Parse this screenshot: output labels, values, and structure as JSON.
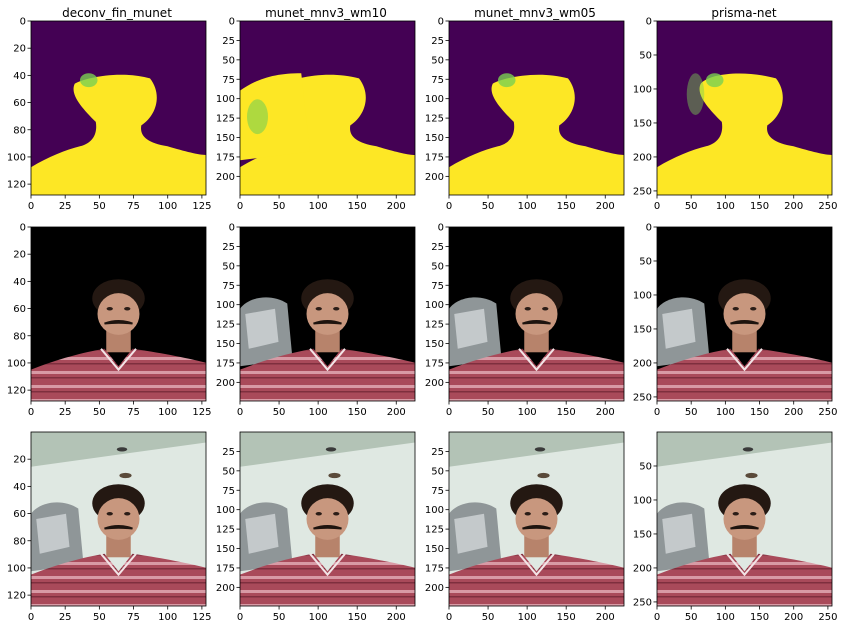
{
  "figure": {
    "colors": {
      "mask_background": "#440154",
      "mask_foreground": "#fde725",
      "mask_edge": "#7ad151",
      "photo_background": "#000000",
      "wall": "#dfe8e2",
      "ceiling": "#b3c3b6",
      "skin": "#c8977e",
      "hair": "#241812",
      "shirt": "#a94a5a",
      "shirt_stripe": "#d89aa5",
      "clothes_pile": "#8f9698"
    },
    "columns": [
      {
        "title": "deconv_fin_munet"
      },
      {
        "title": "munet_mnv3_wm10"
      },
      {
        "title": "munet_mnv3_wm05"
      },
      {
        "title": "prisma-net"
      }
    ],
    "rows": [
      {
        "content": "mask"
      },
      {
        "content": "masked_photo"
      },
      {
        "content": "photo"
      }
    ]
  },
  "chart_data": [
    {
      "type": "image",
      "title": "deconv_fin_munet",
      "xlim": [
        0,
        128
      ],
      "ylim": [
        128,
        0
      ],
      "xticks": [
        0,
        25,
        50,
        75,
        100,
        125
      ],
      "yticks_by_row": [
        [
          0,
          20,
          40,
          60,
          80,
          100,
          120
        ],
        [
          0,
          20,
          40,
          60,
          80,
          100,
          120
        ],
        [
          20,
          40,
          60,
          80,
          100,
          120
        ]
      ]
    },
    {
      "type": "image",
      "title": "munet_mnv3_wm10",
      "xlim": [
        0,
        224
      ],
      "ylim": [
        224,
        0
      ],
      "xticks": [
        0,
        50,
        100,
        150,
        200
      ],
      "yticks_by_row": [
        [
          0,
          25,
          50,
          75,
          100,
          125,
          150,
          175,
          200
        ],
        [
          0,
          25,
          50,
          75,
          100,
          125,
          150,
          175,
          200
        ],
        [
          25,
          50,
          75,
          100,
          125,
          150,
          175,
          200
        ]
      ]
    },
    {
      "type": "image",
      "title": "munet_mnv3_wm05",
      "xlim": [
        0,
        224
      ],
      "ylim": [
        224,
        0
      ],
      "xticks": [
        0,
        50,
        100,
        150,
        200
      ],
      "yticks_by_row": [
        [
          0,
          25,
          50,
          75,
          100,
          125,
          150,
          175,
          200
        ],
        [
          0,
          25,
          50,
          75,
          100,
          125,
          150,
          175,
          200
        ],
        [
          25,
          50,
          75,
          100,
          125,
          150,
          175,
          200
        ]
      ]
    },
    {
      "type": "image",
      "title": "prisma-net",
      "xlim": [
        0,
        256
      ],
      "ylim": [
        256,
        0
      ],
      "xticks": [
        0,
        50,
        100,
        150,
        200,
        250
      ],
      "yticks_by_row": [
        [
          0,
          50,
          100,
          150,
          200,
          250
        ],
        [
          0,
          50,
          100,
          150,
          200,
          250
        ],
        [
          50,
          100,
          150,
          200,
          250
        ]
      ]
    }
  ]
}
